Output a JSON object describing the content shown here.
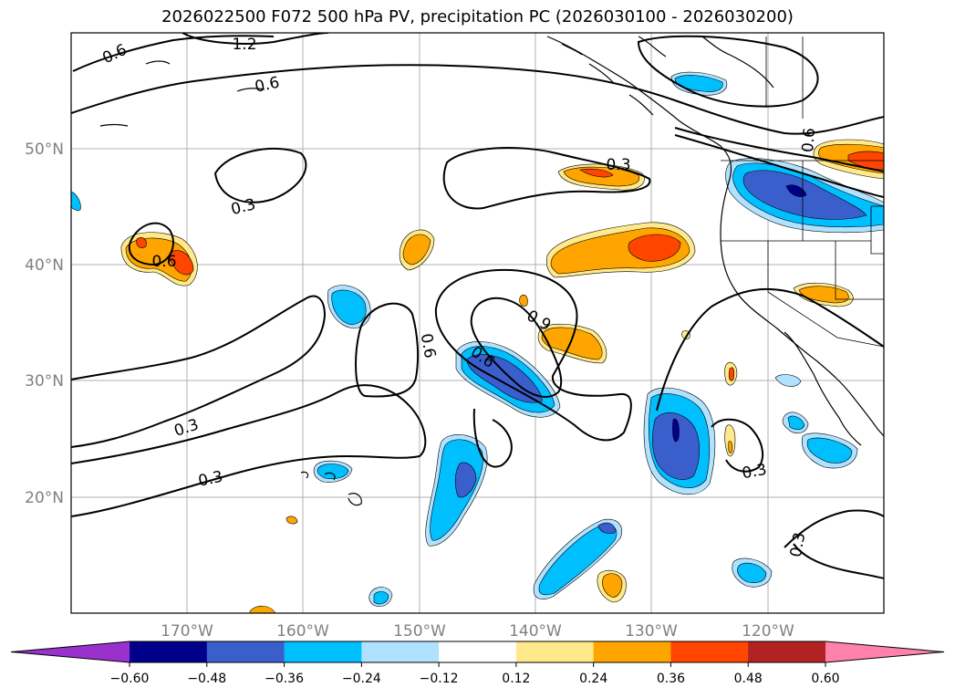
{
  "title": "2026022500 F072 500 hPa PV, precipitation PC (2026030100 - 2026030200)",
  "lat_ticks": [
    "50°N",
    "40°N",
    "30°N",
    "20°N"
  ],
  "lon_ticks": [
    "170°W",
    "160°W",
    "150°W",
    "140°W",
    "130°W",
    "120°W"
  ],
  "colorbar": {
    "ticks": [
      "−0.60",
      "−0.48",
      "−0.36",
      "−0.24",
      "−0.12",
      "0.12",
      "0.24",
      "0.36",
      "0.48",
      "0.60"
    ],
    "colors": [
      "#9932cc",
      "#00008b",
      "#3a5fcd",
      "#00bfff",
      "#b0e2ff",
      "#ffffff",
      "#ffe98a",
      "#ffa500",
      "#ff4500",
      "#b22222",
      "#ff82ab"
    ]
  },
  "contour_labels": [
    "1.2",
    "0.6",
    "0.6",
    "0.3",
    "0.6",
    "0.3",
    "0.9",
    "0.6",
    "0.6",
    "0.3",
    "0.3",
    "0.6",
    "0.3",
    "0.3"
  ],
  "map": {
    "lon_range": [
      -180,
      -110
    ],
    "lat_range": [
      10,
      60
    ],
    "grid": true
  }
}
